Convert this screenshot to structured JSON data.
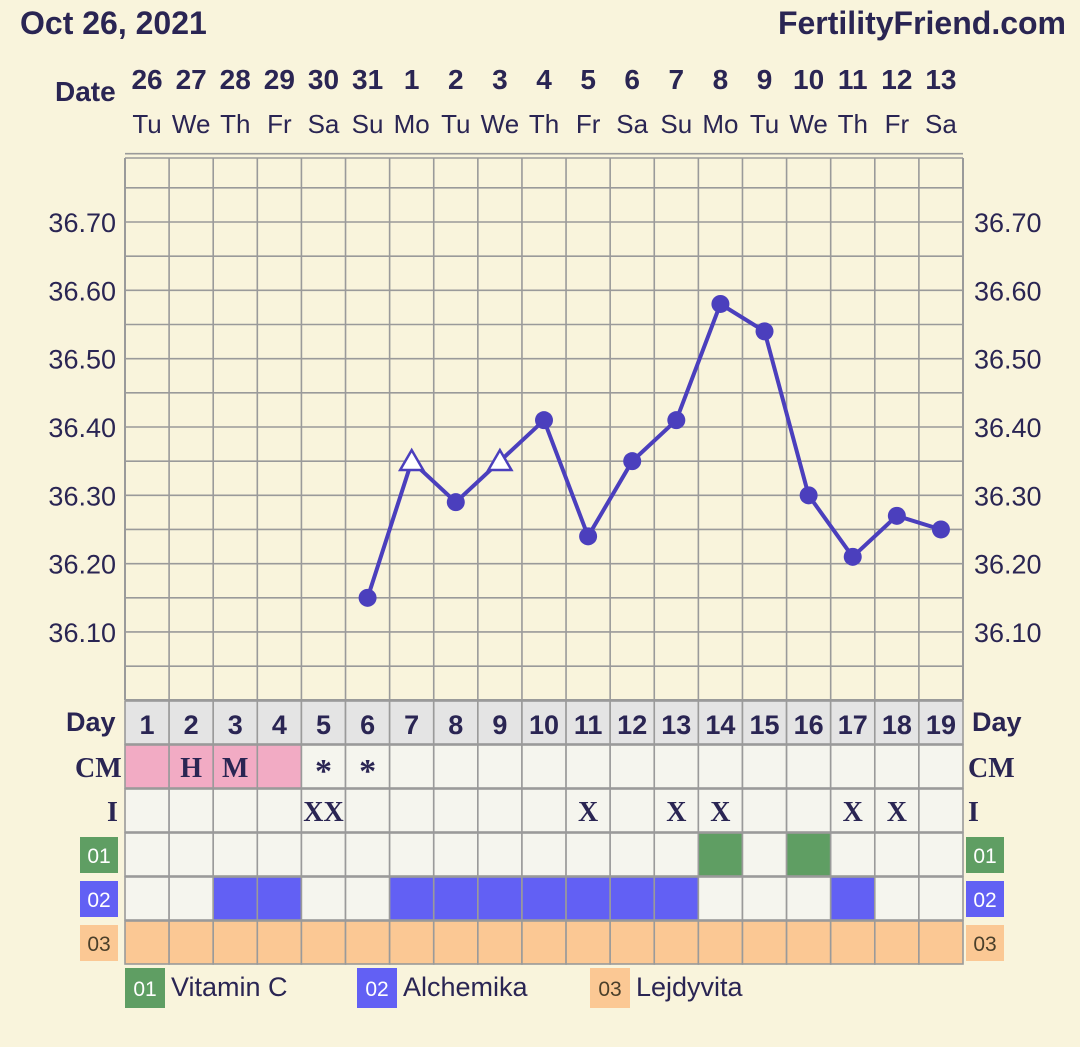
{
  "header": {
    "date": "Oct 26, 2021",
    "site": "FertilityFriend.com",
    "date_row_label": "Date"
  },
  "chart_data": {
    "type": "line",
    "dates": [
      "26",
      "27",
      "28",
      "29",
      "30",
      "31",
      "1",
      "2",
      "3",
      "4",
      "5",
      "6",
      "7",
      "8",
      "9",
      "10",
      "11",
      "12",
      "13"
    ],
    "weekdays": [
      "Tu",
      "We",
      "Th",
      "Fr",
      "Sa",
      "Su",
      "Mo",
      "Tu",
      "We",
      "Th",
      "Fr",
      "Sa",
      "Su",
      "Mo",
      "Tu",
      "We",
      "Th",
      "Fr",
      "Sa"
    ],
    "cycle_days": [
      "1",
      "2",
      "3",
      "4",
      "5",
      "6",
      "7",
      "8",
      "9",
      "10",
      "11",
      "12",
      "13",
      "14",
      "15",
      "16",
      "17",
      "18",
      "19"
    ],
    "temperatures": [
      null,
      null,
      null,
      null,
      null,
      36.15,
      36.35,
      36.29,
      36.35,
      36.41,
      36.24,
      36.35,
      36.41,
      36.58,
      36.54,
      36.3,
      36.21,
      36.27,
      36.25
    ],
    "markers": [
      "",
      "",
      "",
      "",
      "",
      "circle",
      "triangle",
      "circle",
      "triangle",
      "circle",
      "circle",
      "circle",
      "circle",
      "circle",
      "circle",
      "circle",
      "circle",
      "circle",
      "circle"
    ],
    "y_ticks": [
      "36.70",
      "36.60",
      "36.50",
      "36.40",
      "36.30",
      "36.20",
      "36.10"
    ],
    "ylim": [
      36.0,
      36.8
    ],
    "grid": true,
    "line_color": "#4b3fbd"
  },
  "rows": {
    "day_label": "Day",
    "cm_label": "CM",
    "cm": [
      "",
      "H",
      "M",
      "",
      "*",
      "*",
      "",
      "",
      "",
      "",
      "",
      "",
      "",
      "",
      "",
      "",
      "",
      "",
      ""
    ],
    "cm_fill": [
      true,
      true,
      true,
      true,
      false,
      false,
      false,
      false,
      false,
      false,
      false,
      false,
      false,
      false,
      false,
      false,
      false,
      false,
      false
    ],
    "i_label": "I",
    "i": [
      "",
      "",
      "",
      "",
      "XX",
      "",
      "",
      "",
      "",
      "",
      "X",
      "",
      "X",
      "X",
      "",
      "",
      "X",
      "X",
      ""
    ],
    "supplements": [
      {
        "code": "01",
        "name": "Vitamin C",
        "color": "#5f9e63",
        "days": [
          false,
          false,
          false,
          false,
          false,
          false,
          false,
          false,
          false,
          false,
          false,
          false,
          false,
          true,
          false,
          true,
          false,
          false,
          false
        ]
      },
      {
        "code": "02",
        "name": "Alchemika",
        "color": "#6260f4",
        "days": [
          false,
          false,
          true,
          true,
          false,
          false,
          true,
          true,
          true,
          true,
          true,
          true,
          true,
          false,
          false,
          false,
          true,
          false,
          false
        ]
      },
      {
        "code": "03",
        "name": "Lejdyvita",
        "color": "#fbc894",
        "days": [
          true,
          true,
          true,
          true,
          true,
          true,
          true,
          true,
          true,
          true,
          true,
          true,
          true,
          true,
          true,
          true,
          true,
          true,
          true
        ]
      }
    ]
  },
  "colors": {
    "background": "#f9f4dc",
    "cell": "#f5f5ee",
    "grid_line": "#9a9a9a",
    "day_row": "#e4e4e4",
    "cm_pink": "#f2abc4",
    "text": "#2a2553"
  }
}
